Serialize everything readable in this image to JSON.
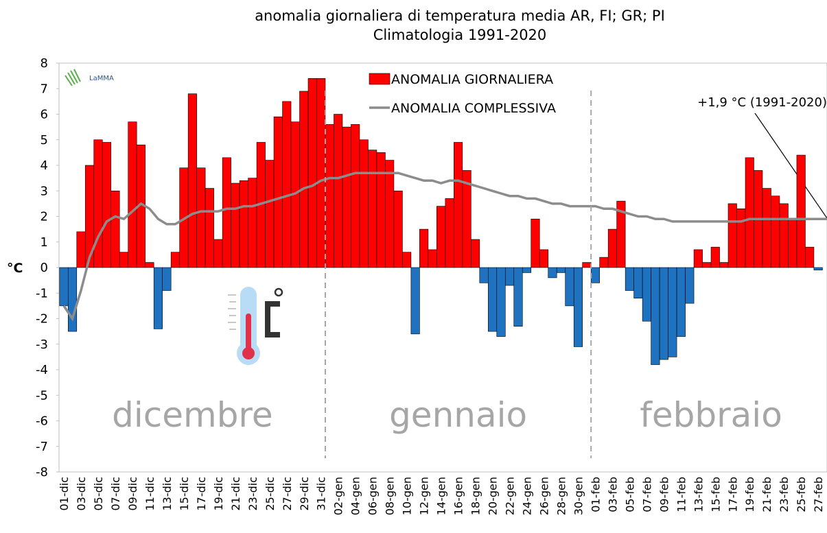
{
  "chart_data": {
    "type": "bar",
    "title": "anomalia giornaliera di temperatura media AR, FI; GR; PI",
    "subtitle": "Climatologia  1991-2020",
    "y_label": "°C",
    "logo": "LaMMA",
    "annotation": "+1,9 °C (1991-2020)",
    "months": [
      "dicembre",
      "gennaio",
      "febbraio"
    ],
    "categories": [
      "01-dic",
      null,
      "03-dic",
      null,
      "05-dic",
      null,
      "07-dic",
      null,
      "09-dic",
      null,
      "11-dic",
      null,
      "13-dic",
      null,
      "15-dic",
      null,
      "17-dic",
      null,
      "19-dic",
      null,
      "21-dic",
      null,
      "23-dic",
      null,
      "25-dic",
      null,
      "27-dic",
      null,
      "29-dic",
      null,
      "31-dic",
      null,
      "02-gen",
      null,
      "04-gen",
      null,
      "06-gen",
      null,
      "08-gen",
      null,
      "10-gen",
      null,
      "12-gen",
      null,
      "14-gen",
      null,
      "16-gen",
      null,
      "18-gen",
      null,
      "20-gen",
      null,
      "22-gen",
      null,
      "24-gen",
      null,
      "26-gen",
      null,
      "28-gen",
      null,
      "30-gen",
      null,
      "01-feb",
      null,
      "03-feb",
      null,
      "05-feb",
      null,
      "07-feb",
      null,
      "09-feb",
      null,
      "11-feb",
      null,
      "13-feb",
      null,
      "15-feb",
      null,
      "17-feb",
      null,
      "19-feb",
      null,
      "21-feb",
      null,
      "23-feb",
      null,
      "25-feb",
      null,
      "27-feb",
      null
    ],
    "series": [
      {
        "name": "ANOMALIA GIORNALIERA",
        "color": "#ff0000",
        "negative_color": "#1f72c0",
        "values": [
          -1.5,
          -2.5,
          1.4,
          4.0,
          5.0,
          4.9,
          3.0,
          0.6,
          5.7,
          4.8,
          0.2,
          -2.4,
          -0.9,
          0.6,
          3.9,
          6.8,
          3.9,
          3.1,
          1.1,
          4.3,
          3.3,
          3.4,
          3.5,
          4.9,
          4.2,
          5.9,
          6.5,
          5.7,
          6.9,
          7.4,
          7.4,
          5.6,
          6.0,
          5.5,
          5.6,
          5.0,
          4.6,
          4.5,
          4.2,
          3.0,
          0.6,
          -2.6,
          1.5,
          0.7,
          2.4,
          2.7,
          4.9,
          3.8,
          1.1,
          -0.6,
          -2.5,
          -2.7,
          -0.7,
          -2.3,
          -0.2,
          1.9,
          0.7,
          -0.4,
          -0.2,
          -1.5,
          -3.1,
          0.2,
          -0.6,
          0.4,
          1.5,
          2.6,
          -0.9,
          -1.2,
          -2.1,
          -3.8,
          -3.6,
          -3.5,
          -2.7,
          -1.4,
          0.7,
          0.2,
          0.8,
          0.2,
          2.5,
          2.3,
          4.3,
          3.8,
          3.1,
          2.8,
          2.5,
          1.9,
          4.4,
          0.8,
          -0.1,
          null
        ]
      },
      {
        "name": "ANOMALIA COMPLESSIVA",
        "color": "#8c8c8c",
        "type": "line",
        "values": [
          -1.5,
          -2.0,
          -0.9,
          0.4,
          1.2,
          1.8,
          2.0,
          1.9,
          2.2,
          2.5,
          2.3,
          1.9,
          1.7,
          1.7,
          1.9,
          2.1,
          2.2,
          2.2,
          2.2,
          2.3,
          2.3,
          2.4,
          2.4,
          2.5,
          2.6,
          2.7,
          2.8,
          2.9,
          3.1,
          3.2,
          3.4,
          3.5,
          3.5,
          3.6,
          3.7,
          3.7,
          3.7,
          3.7,
          3.7,
          3.7,
          3.6,
          3.5,
          3.4,
          3.4,
          3.3,
          3.4,
          3.4,
          3.3,
          3.2,
          3.1,
          3.0,
          2.9,
          2.8,
          2.8,
          2.7,
          2.7,
          2.6,
          2.5,
          2.5,
          2.4,
          2.4,
          2.4,
          2.4,
          2.3,
          2.3,
          2.2,
          2.1,
          2.0,
          2.0,
          1.9,
          1.9,
          1.8,
          1.8,
          1.8,
          1.8,
          1.8,
          1.8,
          1.8,
          1.8,
          1.8,
          1.9,
          1.9,
          1.9,
          1.9,
          1.9,
          1.9,
          1.9,
          1.9,
          1.9,
          1.9
        ]
      }
    ],
    "ylim": [
      -8,
      8
    ],
    "yticks": [
      -8,
      -7,
      -6,
      -5,
      -4,
      -3,
      -2,
      -1,
      0,
      1,
      2,
      3,
      4,
      5,
      6,
      7,
      8
    ],
    "legend": "top"
  }
}
